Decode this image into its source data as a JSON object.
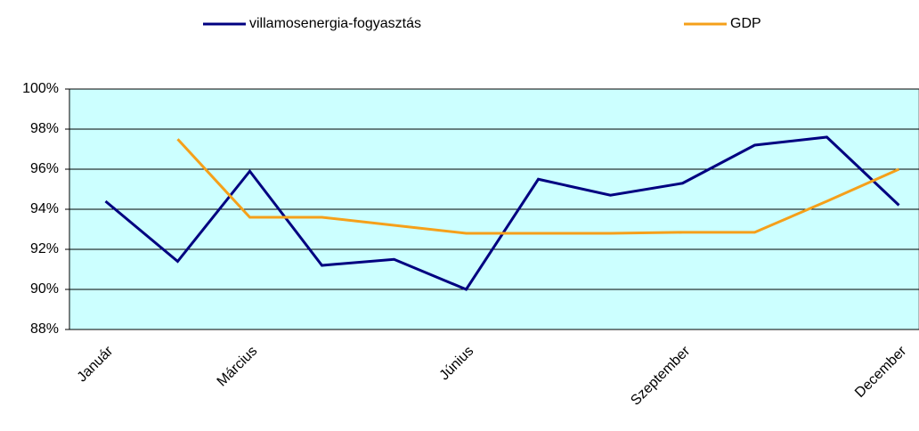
{
  "chart_data": {
    "type": "line",
    "categories": [
      "Január",
      null,
      "Március",
      null,
      null,
      "Június",
      null,
      null,
      "Szeptember",
      null,
      null,
      "December"
    ],
    "series": [
      {
        "name": "villamosenergia-fogyasztás",
        "color": "#000080",
        "values": [
          94.4,
          91.4,
          95.9,
          91.2,
          91.5,
          90.0,
          95.5,
          94.7,
          95.3,
          97.2,
          97.6,
          94.2
        ]
      },
      {
        "name": "GDP",
        "color": "#f5a01a",
        "values": [
          null,
          97.5,
          93.6,
          93.6,
          93.2,
          92.8,
          92.8,
          92.8,
          92.85,
          92.85,
          94.4,
          96.0
        ]
      }
    ],
    "ylim": [
      88,
      100
    ],
    "yticks": [
      {
        "value": 88,
        "label": "88%"
      },
      {
        "value": 90,
        "label": "90%"
      },
      {
        "value": 92,
        "label": "92%"
      },
      {
        "value": 94,
        "label": "94%"
      },
      {
        "value": 96,
        "label": "96%"
      },
      {
        "value": 98,
        "label": "98%"
      },
      {
        "value": 100,
        "label": "100%"
      }
    ],
    "grid": true,
    "legend": "top",
    "background": "#ccffff"
  }
}
